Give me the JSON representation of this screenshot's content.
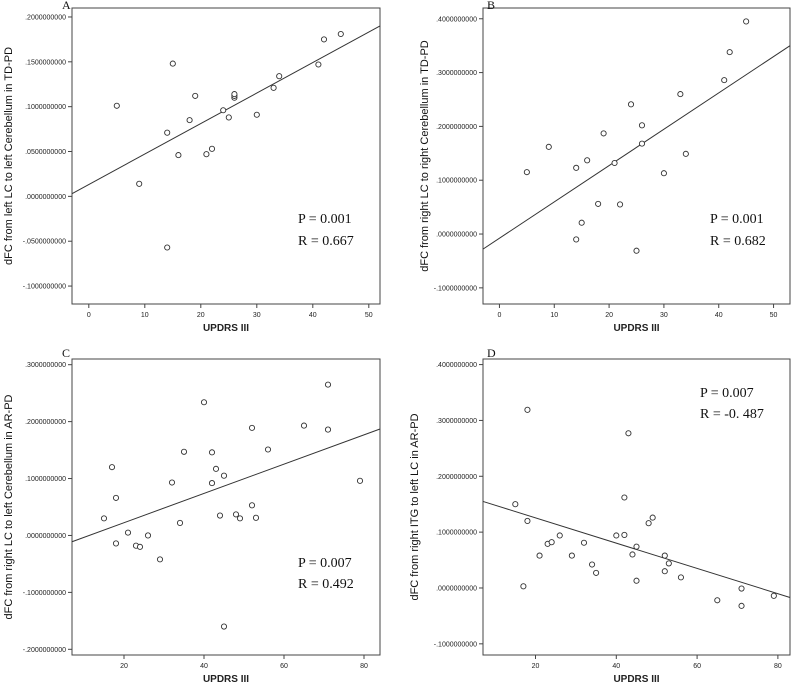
{
  "chart_data": [
    {
      "type": "scatter",
      "panel_label": "A",
      "xlabel": "UPDRS III",
      "ylabel": "dFC from left LC to left Cerebellum in TD-PD",
      "xlim": [
        -3,
        52
      ],
      "ylim": [
        -0.12,
        0.21
      ],
      "x_ticks": [
        0,
        10,
        20,
        30,
        40,
        50
      ],
      "y_ticks": [
        -0.1,
        -0.05,
        0.0,
        0.05,
        0.1,
        0.15,
        0.2
      ],
      "x_tick_labels": [
        "0",
        "10",
        "20",
        "30",
        "40",
        "50"
      ],
      "y_tick_labels": [
        "-.1000000000",
        "-.0500000000",
        ".0000000000",
        ".0500000000",
        ".1000000000",
        ".1500000000",
        ".2000000000"
      ],
      "stats": {
        "p": "P = 0.001",
        "r": "R = 0.667"
      },
      "fit_line": {
        "x": [
          -3,
          52
        ],
        "y": [
          0.003,
          0.19
        ]
      },
      "points": [
        [
          5,
          0.101
        ],
        [
          9,
          0.014
        ],
        [
          14,
          0.071
        ],
        [
          14,
          -0.057
        ],
        [
          15,
          0.148
        ],
        [
          16,
          0.046
        ],
        [
          18,
          0.085
        ],
        [
          19,
          0.112
        ],
        [
          21,
          0.047
        ],
        [
          22,
          0.053
        ],
        [
          24,
          0.096
        ],
        [
          25,
          0.088
        ],
        [
          26,
          0.11
        ],
        [
          26,
          0.112
        ],
        [
          26,
          0.114
        ],
        [
          30,
          0.091
        ],
        [
          33,
          0.121
        ],
        [
          34,
          0.134
        ],
        [
          41,
          0.147
        ],
        [
          42,
          0.175
        ],
        [
          45,
          0.181
        ]
      ]
    },
    {
      "type": "scatter",
      "panel_label": "B",
      "xlabel": "UPDRS III",
      "ylabel": "dFC from right LC to right Cerebellum in TD-PD",
      "xlim": [
        -3,
        53
      ],
      "ylim": [
        -0.13,
        0.42
      ],
      "x_ticks": [
        0,
        10,
        20,
        30,
        40,
        50
      ],
      "y_ticks": [
        -0.1,
        0.0,
        0.1,
        0.2,
        0.3,
        0.4
      ],
      "x_tick_labels": [
        "0",
        "10",
        "20",
        "30",
        "40",
        "50"
      ],
      "y_tick_labels": [
        "-.1000000000",
        ".0000000000",
        ".1000000000",
        ".2000000000",
        ".3000000000",
        ".4000000000"
      ],
      "stats": {
        "p": "P = 0.001",
        "r": "R = 0.682"
      },
      "fit_line": {
        "x": [
          -3,
          53
        ],
        "y": [
          -0.028,
          0.35
        ]
      },
      "points": [
        [
          5,
          0.115
        ],
        [
          9,
          0.162
        ],
        [
          14,
          0.123
        ],
        [
          14,
          -0.01
        ],
        [
          15,
          0.021
        ],
        [
          16,
          0.137
        ],
        [
          18,
          0.056
        ],
        [
          19,
          0.187
        ],
        [
          21,
          0.132
        ],
        [
          22,
          0.055
        ],
        [
          24,
          0.241
        ],
        [
          25,
          -0.031
        ],
        [
          26,
          0.202
        ],
        [
          26,
          0.168
        ],
        [
          30,
          0.113
        ],
        [
          33,
          0.26
        ],
        [
          34,
          0.149
        ],
        [
          41,
          0.286
        ],
        [
          42,
          0.338
        ],
        [
          45,
          0.395
        ]
      ]
    },
    {
      "type": "scatter",
      "panel_label": "C",
      "xlabel": "UPDRS III",
      "ylabel": "dFC from right LC to left Cerebellum in AR-PD",
      "xlim": [
        7,
        84
      ],
      "ylim": [
        -0.21,
        0.31
      ],
      "x_ticks": [
        20,
        40,
        60,
        80
      ],
      "y_ticks": [
        -0.2,
        -0.1,
        0.0,
        0.1,
        0.2,
        0.3
      ],
      "x_tick_labels": [
        "20",
        "40",
        "60",
        "80"
      ],
      "y_tick_labels": [
        "-.2000000000",
        "-.1000000000",
        ".0000000000",
        ".1000000000",
        ".2000000000",
        ".3000000000"
      ],
      "stats": {
        "p": "P = 0.007",
        "r": "R = 0.492"
      },
      "fit_line": {
        "x": [
          7,
          84
        ],
        "y": [
          -0.011,
          0.187
        ]
      },
      "points": [
        [
          15,
          0.03
        ],
        [
          17,
          0.12
        ],
        [
          18,
          0.066
        ],
        [
          18,
          -0.014
        ],
        [
          21,
          0.005
        ],
        [
          23,
          -0.018
        ],
        [
          24,
          -0.02
        ],
        [
          26,
          0.0
        ],
        [
          29,
          -0.042
        ],
        [
          32,
          0.093
        ],
        [
          34,
          0.022
        ],
        [
          35,
          0.147
        ],
        [
          40,
          0.234
        ],
        [
          42,
          0.146
        ],
        [
          42,
          0.092
        ],
        [
          43,
          0.117
        ],
        [
          44,
          0.035
        ],
        [
          45,
          0.105
        ],
        [
          45,
          -0.16
        ],
        [
          48,
          0.037
        ],
        [
          49,
          0.03
        ],
        [
          52,
          0.189
        ],
        [
          52,
          0.053
        ],
        [
          53,
          0.031
        ],
        [
          56,
          0.151
        ],
        [
          65,
          0.193
        ],
        [
          71,
          0.265
        ],
        [
          71,
          0.186
        ],
        [
          79,
          0.096
        ]
      ]
    },
    {
      "type": "scatter",
      "panel_label": "D",
      "xlabel": "UPDRS III",
      "ylabel": "dFC from right ITG to left LC in AR-PD",
      "xlim": [
        7,
        83
      ],
      "ylim": [
        -0.12,
        0.41
      ],
      "x_ticks": [
        20,
        40,
        60,
        80
      ],
      "y_ticks": [
        -0.1,
        0.0,
        0.1,
        0.2,
        0.3,
        0.4
      ],
      "x_tick_labels": [
        "20",
        "40",
        "60",
        "80"
      ],
      "y_tick_labels": [
        "-.1000000000",
        ".0000000000",
        ".1000000000",
        ".2000000000",
        ".3000000000",
        ".4000000000"
      ],
      "stats": {
        "p": "P = 0.007",
        "r": "R = -0. 487"
      },
      "fit_line": {
        "x": [
          7,
          83
        ],
        "y": [
          0.155,
          -0.017
        ]
      },
      "points": [
        [
          15,
          0.15
        ],
        [
          17,
          0.003
        ],
        [
          18,
          0.319
        ],
        [
          18,
          0.12
        ],
        [
          21,
          0.058
        ],
        [
          23,
          0.079
        ],
        [
          24,
          0.082
        ],
        [
          26,
          0.094
        ],
        [
          29,
          0.058
        ],
        [
          32,
          0.081
        ],
        [
          34,
          0.042
        ],
        [
          35,
          0.027
        ],
        [
          40,
          0.094
        ],
        [
          42,
          0.162
        ],
        [
          42,
          0.095
        ],
        [
          43,
          0.277
        ],
        [
          44,
          0.06
        ],
        [
          45,
          0.074
        ],
        [
          45,
          0.013
        ],
        [
          48,
          0.116
        ],
        [
          49,
          0.126
        ],
        [
          52,
          0.058
        ],
        [
          52,
          0.03
        ],
        [
          53,
          0.044
        ],
        [
          56,
          0.019
        ],
        [
          65,
          -0.022
        ],
        [
          71,
          -0.001
        ],
        [
          71,
          -0.032
        ],
        [
          79,
          -0.014
        ]
      ]
    }
  ]
}
